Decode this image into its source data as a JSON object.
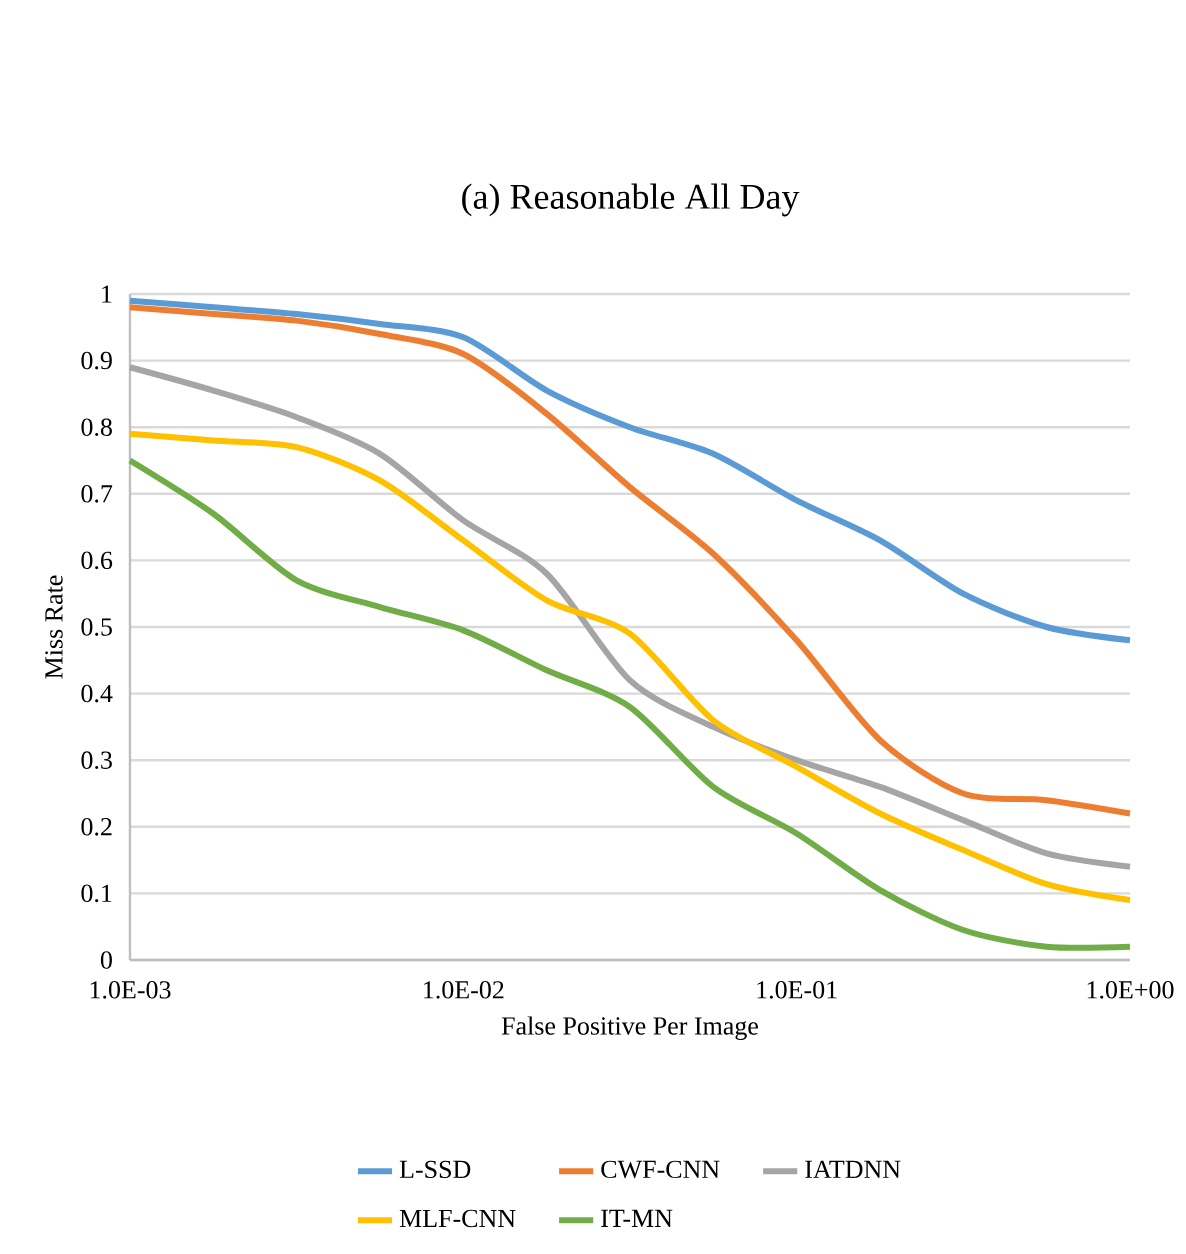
{
  "chart_data": {
    "type": "line",
    "title": "(a) Reasonable All Day",
    "xlabel": "False Positive Per Image",
    "ylabel": "Miss Rate",
    "x": [
      0.001,
      0.00178,
      0.00316,
      0.00562,
      0.01,
      0.0178,
      0.0316,
      0.0562,
      0.1,
      0.178,
      0.316,
      0.562,
      1
    ],
    "series": [
      {
        "name": "L-SSD",
        "color": "#5b9bd5",
        "values": [
          0.99,
          0.98,
          0.97,
          0.955,
          0.935,
          0.855,
          0.8,
          0.76,
          0.69,
          0.63,
          0.55,
          0.5,
          0.48
        ]
      },
      {
        "name": "CWF-CNN",
        "color": "#ed7d31",
        "values": [
          0.98,
          0.97,
          0.96,
          0.94,
          0.91,
          0.82,
          0.71,
          0.61,
          0.48,
          0.33,
          0.25,
          0.24,
          0.22
        ]
      },
      {
        "name": "IATDNN",
        "color": "#a5a5a5",
        "values": [
          0.89,
          0.855,
          0.815,
          0.76,
          0.66,
          0.58,
          0.42,
          0.35,
          0.3,
          0.26,
          0.21,
          0.16,
          0.14
        ]
      },
      {
        "name": "MLF-CNN",
        "color": "#ffc000",
        "values": [
          0.79,
          0.78,
          0.77,
          0.72,
          0.63,
          0.54,
          0.49,
          0.36,
          0.29,
          0.22,
          0.165,
          0.114,
          0.09
        ]
      },
      {
        "name": "IT-MN",
        "color": "#70ad47",
        "values": [
          0.75,
          0.67,
          0.57,
          0.53,
          0.495,
          0.435,
          0.38,
          0.26,
          0.19,
          0.105,
          0.045,
          0.02,
          0.02
        ]
      }
    ],
    "log": "x",
    "xlim": [
      0.001,
      1
    ],
    "ylim": [
      0,
      1
    ],
    "xticks": [
      {
        "value": 0.001,
        "label": "1.0E-03"
      },
      {
        "value": 0.01,
        "label": "1.0E-02"
      },
      {
        "value": 0.1,
        "label": "1.0E-01"
      },
      {
        "value": 1,
        "label": "1.0E+00"
      }
    ],
    "yticks": [
      0,
      0.1,
      0.2,
      0.3,
      0.4,
      0.5,
      0.6,
      0.7,
      0.8,
      0.9,
      1
    ],
    "grid": "y",
    "legend": "bottom",
    "marker": "none",
    "line_style": "solid"
  }
}
